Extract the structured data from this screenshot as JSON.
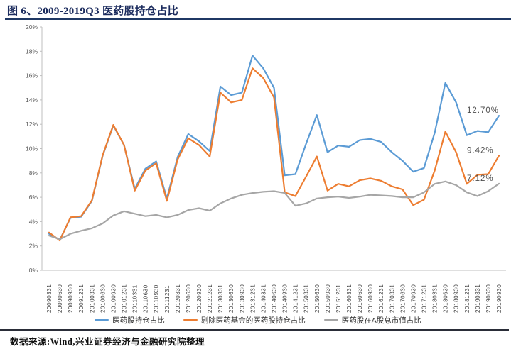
{
  "figure": {
    "title": "图 6、2009-2019Q3 医药股持仓占比"
  },
  "source_note": "数据来源:Wind,兴业证券经济与金融研究院整理",
  "colors": {
    "title_navy": "#1c2c5e",
    "rule_navy": "#1f3864",
    "axis_gray": "#bfbfbf",
    "tick_text": "#595959",
    "end_label_text": "#4d4d4d"
  },
  "chart_data": {
    "type": "line",
    "title": "2009-2019Q3 医药股持仓占比",
    "xlabel": "",
    "ylabel": "",
    "ylim": [
      0,
      20
    ],
    "ytick_step": 2,
    "ytick_suffix": "%",
    "grid": false,
    "legend_position": "bottom",
    "categories": [
      "20090331",
      "20090630",
      "20090930",
      "20091231",
      "20100331",
      "20100630",
      "20100930",
      "20101231",
      "20110331",
      "20110630",
      "20110930",
      "20111231",
      "20120331",
      "20120630",
      "20120930",
      "20121231",
      "20130331",
      "20130630",
      "20130930",
      "20131231",
      "20140331",
      "20140630",
      "20140930",
      "20141231",
      "20150331",
      "20150630",
      "20150930",
      "20151231",
      "20160331",
      "20160630",
      "20160930",
      "20161231",
      "20170331",
      "20170630",
      "20170930",
      "20171231",
      "20180331",
      "20180630",
      "20180930",
      "20181231",
      "20190331",
      "20190630",
      "20190930"
    ],
    "series": [
      {
        "name": "医药股持仓占比",
        "color": "#5B9BD5",
        "values": [
          3.0,
          2.5,
          4.3,
          4.4,
          5.7,
          9.4,
          11.9,
          10.3,
          6.7,
          8.35,
          8.95,
          5.9,
          9.3,
          11.2,
          10.6,
          9.8,
          15.1,
          14.4,
          14.6,
          17.65,
          16.6,
          15.0,
          7.8,
          7.9,
          10.4,
          12.75,
          9.7,
          10.25,
          10.15,
          10.7,
          10.8,
          10.55,
          9.7,
          9.0,
          8.1,
          8.4,
          11.3,
          15.4,
          13.8,
          11.1,
          11.45,
          11.35,
          12.7
        ]
      },
      {
        "name": "剔除医药基金的医药股持仓占比",
        "color": "#ED7D31",
        "values": [
          3.1,
          2.45,
          4.35,
          4.45,
          5.75,
          9.45,
          11.95,
          10.3,
          6.55,
          8.2,
          8.8,
          5.7,
          9.1,
          10.85,
          10.3,
          9.35,
          14.6,
          13.8,
          14.0,
          16.6,
          15.8,
          14.2,
          6.4,
          6.1,
          7.7,
          9.35,
          6.55,
          7.1,
          6.9,
          7.4,
          7.55,
          7.35,
          6.9,
          6.65,
          5.35,
          5.8,
          8.2,
          11.4,
          9.7,
          7.1,
          7.85,
          7.9,
          9.42
        ]
      },
      {
        "name": "医药股在A股总市值占比",
        "color": "#A6A6A6",
        "values": [
          2.85,
          2.55,
          3.0,
          3.25,
          3.45,
          3.85,
          4.5,
          4.85,
          4.65,
          4.45,
          4.55,
          4.35,
          4.55,
          4.95,
          5.1,
          4.9,
          5.5,
          5.9,
          6.2,
          6.35,
          6.45,
          6.5,
          6.35,
          5.3,
          5.5,
          5.9,
          6.0,
          6.05,
          5.95,
          6.05,
          6.2,
          6.15,
          6.1,
          6.0,
          6.0,
          6.4,
          7.1,
          7.3,
          7.0,
          6.4,
          6.1,
          6.5,
          7.12
        ]
      }
    ],
    "end_labels": [
      "12.70%",
      "9.42%",
      "7.12%"
    ]
  }
}
